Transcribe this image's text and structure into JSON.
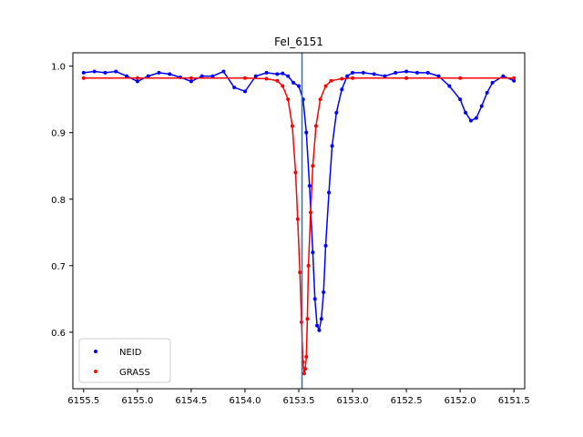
{
  "chart_data": {
    "type": "scatter",
    "title": "FeI_6151",
    "xlabel": "",
    "ylabel": "",
    "x_inverted": true,
    "xlim": [
      6155.6,
      6151.4
    ],
    "ylim": [
      0.515,
      1.02
    ],
    "x_ticks": [
      "6155.5",
      "6155.0",
      "6154.5",
      "6154.0",
      "6153.5",
      "6153.0",
      "6152.5",
      "6152.0",
      "6151.5"
    ],
    "y_ticks": [
      "0.6",
      "0.7",
      "0.8",
      "0.9",
      "1.0"
    ],
    "grid": false,
    "legend_position": "bottom-left",
    "vertical_line": {
      "x": 6153.47,
      "color": "#1f77b4"
    },
    "series": [
      {
        "name": "NEID",
        "color": "#0000ff",
        "style": "points-with-line",
        "points": [
          [
            6155.5,
            0.99
          ],
          [
            6155.4,
            0.992
          ],
          [
            6155.3,
            0.99
          ],
          [
            6155.2,
            0.992
          ],
          [
            6155.1,
            0.985
          ],
          [
            6155.0,
            0.977
          ],
          [
            6154.9,
            0.985
          ],
          [
            6154.8,
            0.99
          ],
          [
            6154.7,
            0.988
          ],
          [
            6154.6,
            0.983
          ],
          [
            6154.5,
            0.977
          ],
          [
            6154.4,
            0.985
          ],
          [
            6154.3,
            0.985
          ],
          [
            6154.2,
            0.992
          ],
          [
            6154.1,
            0.968
          ],
          [
            6154.0,
            0.962
          ],
          [
            6153.9,
            0.985
          ],
          [
            6153.8,
            0.99
          ],
          [
            6153.7,
            0.988
          ],
          [
            6153.65,
            0.989
          ],
          [
            6153.6,
            0.985
          ],
          [
            6153.55,
            0.975
          ],
          [
            6153.5,
            0.97
          ],
          [
            6153.46,
            0.95
          ],
          [
            6153.43,
            0.9
          ],
          [
            6153.4,
            0.82
          ],
          [
            6153.37,
            0.72
          ],
          [
            6153.35,
            0.65
          ],
          [
            6153.33,
            0.61
          ],
          [
            6153.31,
            0.603
          ],
          [
            6153.29,
            0.62
          ],
          [
            6153.27,
            0.66
          ],
          [
            6153.25,
            0.73
          ],
          [
            6153.22,
            0.81
          ],
          [
            6153.19,
            0.88
          ],
          [
            6153.15,
            0.93
          ],
          [
            6153.1,
            0.965
          ],
          [
            6153.05,
            0.985
          ],
          [
            6153.0,
            0.99
          ],
          [
            6152.9,
            0.99
          ],
          [
            6152.8,
            0.988
          ],
          [
            6152.7,
            0.985
          ],
          [
            6152.6,
            0.99
          ],
          [
            6152.5,
            0.992
          ],
          [
            6152.4,
            0.99
          ],
          [
            6152.3,
            0.99
          ],
          [
            6152.2,
            0.985
          ],
          [
            6152.1,
            0.97
          ],
          [
            6152.0,
            0.95
          ],
          [
            6151.95,
            0.93
          ],
          [
            6151.9,
            0.918
          ],
          [
            6151.85,
            0.922
          ],
          [
            6151.8,
            0.94
          ],
          [
            6151.75,
            0.96
          ],
          [
            6151.7,
            0.975
          ],
          [
            6151.6,
            0.985
          ],
          [
            6151.5,
            0.978
          ]
        ]
      },
      {
        "name": "GRASS",
        "color": "#ff0000",
        "style": "points-with-line",
        "points": [
          [
            6155.5,
            0.982
          ],
          [
            6155.0,
            0.982
          ],
          [
            6154.5,
            0.982
          ],
          [
            6154.0,
            0.982
          ],
          [
            6153.8,
            0.981
          ],
          [
            6153.7,
            0.978
          ],
          [
            6153.65,
            0.97
          ],
          [
            6153.6,
            0.95
          ],
          [
            6153.56,
            0.91
          ],
          [
            6153.53,
            0.84
          ],
          [
            6153.51,
            0.77
          ],
          [
            6153.49,
            0.69
          ],
          [
            6153.475,
            0.615
          ],
          [
            6153.46,
            0.555
          ],
          [
            6153.45,
            0.538
          ],
          [
            6153.44,
            0.545
          ],
          [
            6153.43,
            0.563
          ],
          [
            6153.42,
            0.62
          ],
          [
            6153.41,
            0.7
          ],
          [
            6153.39,
            0.78
          ],
          [
            6153.37,
            0.85
          ],
          [
            6153.34,
            0.91
          ],
          [
            6153.3,
            0.95
          ],
          [
            6153.25,
            0.97
          ],
          [
            6153.2,
            0.978
          ],
          [
            6153.1,
            0.981
          ],
          [
            6153.0,
            0.982
          ],
          [
            6152.5,
            0.982
          ],
          [
            6152.0,
            0.982
          ],
          [
            6151.5,
            0.982
          ]
        ]
      }
    ]
  }
}
